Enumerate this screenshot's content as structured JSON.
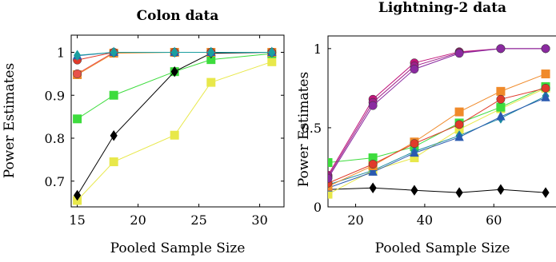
{
  "chart_data": [
    {
      "type": "line",
      "title": "Colon data",
      "xlabel": "Pooled Sample Size",
      "ylabel": "Power Estimates",
      "xlim": [
        14.5,
        32
      ],
      "ylim": [
        0.64,
        1.04
      ],
      "xticks": [
        15,
        20,
        25,
        30
      ],
      "yticks": [
        0.7,
        0.8,
        0.9,
        1
      ],
      "ytick_labels": [
        "0.7",
        "0.8",
        "0.9",
        "1"
      ],
      "x": [
        15,
        18,
        23,
        26,
        31
      ],
      "grid": false,
      "series": [
        {
          "color": "#e8e84a",
          "marker": "square",
          "values": [
            0.655,
            0.745,
            0.807,
            0.93,
            0.978
          ]
        },
        {
          "color": "#3ddc3d",
          "marker": "square",
          "values": [
            0.845,
            0.9,
            0.955,
            0.983,
            0.997
          ]
        },
        {
          "color": "#000000",
          "marker": "diamond",
          "values": [
            0.667,
            0.806,
            0.955,
            0.998,
            1.0
          ]
        },
        {
          "color": "#f08a2a",
          "marker": "square",
          "values": [
            0.948,
            0.998,
            1.0,
            1.0,
            1.0
          ]
        },
        {
          "color": "#e8524a",
          "marker": "circle",
          "values": [
            0.95,
            1.0,
            1.0,
            1.0,
            1.0
          ]
        },
        {
          "color": "#e03a2a",
          "marker": "circle",
          "values": [
            0.982,
            1.0,
            1.0,
            1.0,
            1.0
          ]
        },
        {
          "color": "#2a5ab0",
          "marker": "triangle",
          "values": [
            0.992,
            1.0,
            1.0,
            1.0,
            1.0
          ]
        },
        {
          "color": "#1a9ea0",
          "marker": "diamond",
          "values": [
            0.993,
            1.0,
            1.0,
            1.0,
            1.0
          ]
        }
      ]
    },
    {
      "type": "line",
      "title": "Lightning-2 data",
      "xlabel": "Pooled Sample Size",
      "ylabel": "Power Estimates",
      "xlim": [
        12,
        78
      ],
      "ylim": [
        0,
        1.08
      ],
      "xticks": [
        20,
        40,
        60
      ],
      "yticks": [
        0,
        0.5,
        1
      ],
      "ytick_labels": [
        "0",
        "0.5",
        "1"
      ],
      "x": [
        12,
        25,
        37,
        50,
        62,
        75
      ],
      "grid": false,
      "series": [
        {
          "color": "#000000",
          "marker": "diamond",
          "values": [
            0.11,
            0.12,
            0.105,
            0.09,
            0.11,
            0.09
          ]
        },
        {
          "color": "#e8e84a",
          "marker": "square",
          "values": [
            0.08,
            0.23,
            0.31,
            0.49,
            0.62,
            0.75
          ]
        },
        {
          "color": "#3ddc3d",
          "marker": "square",
          "values": [
            0.28,
            0.31,
            0.38,
            0.53,
            0.63,
            0.76
          ]
        },
        {
          "color": "#1a8aa0",
          "marker": "diamond",
          "values": [
            0.14,
            0.23,
            0.35,
            0.45,
            0.56,
            0.7
          ]
        },
        {
          "color": "#2a5ab0",
          "marker": "triangle",
          "values": [
            0.12,
            0.22,
            0.34,
            0.44,
            0.57,
            0.69
          ]
        },
        {
          "color": "#f08a2a",
          "marker": "square",
          "values": [
            0.13,
            0.26,
            0.41,
            0.6,
            0.73,
            0.84
          ]
        },
        {
          "color": "#e03a2a",
          "marker": "circle",
          "values": [
            0.15,
            0.27,
            0.4,
            0.52,
            0.68,
            0.75
          ]
        },
        {
          "color": "#c0157a",
          "marker": "circle",
          "values": [
            0.2,
            0.68,
            0.91,
            0.98,
            1.0,
            1.0
          ]
        },
        {
          "color": "#a0208a",
          "marker": "circle",
          "values": [
            0.19,
            0.66,
            0.89,
            0.975,
            1.0,
            1.0
          ]
        },
        {
          "color": "#8a2aa0",
          "marker": "circle",
          "values": [
            0.18,
            0.64,
            0.87,
            0.97,
            1.0,
            1.0
          ]
        }
      ]
    }
  ]
}
